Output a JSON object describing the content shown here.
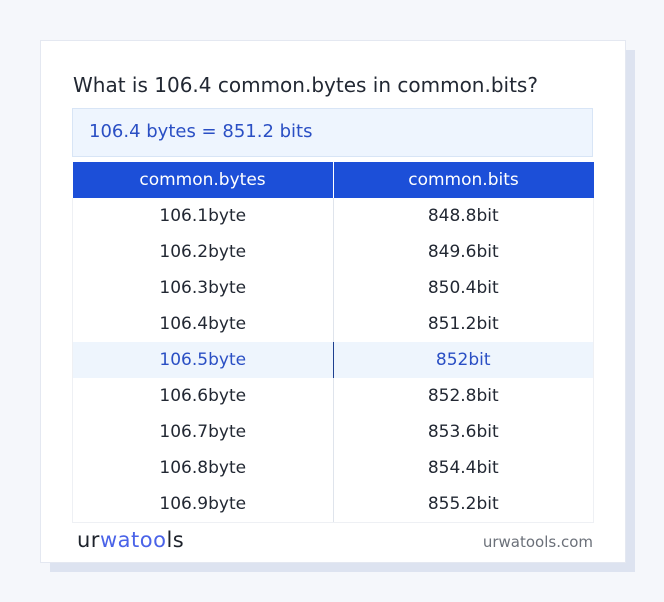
{
  "title": "What is 106.4 common.bytes in common.bits?",
  "result": "106.4 bytes = 851.2 bits",
  "table": {
    "headers": [
      "common.bytes",
      "common.bits"
    ],
    "rows": [
      [
        "106.1byte",
        "848.8bit"
      ],
      [
        "106.2byte",
        "849.6bit"
      ],
      [
        "106.3byte",
        "850.4bit"
      ],
      [
        "106.4byte",
        "851.2bit"
      ],
      [
        "106.5byte",
        "852bit"
      ],
      [
        "106.6byte",
        "852.8bit"
      ],
      [
        "106.7byte",
        "853.6bit"
      ],
      [
        "106.8byte",
        "854.4bit"
      ],
      [
        "106.9byte",
        "855.2bit"
      ]
    ],
    "highlighted_row": 4
  },
  "footer": {
    "logo": {
      "part1": "ur",
      "part2": "wat",
      "part3": "oo",
      "part4": "ls"
    },
    "site": "urwatools.com"
  },
  "colors": {
    "accent": "#1c4fd8",
    "highlight_text": "#2a4fc4"
  }
}
